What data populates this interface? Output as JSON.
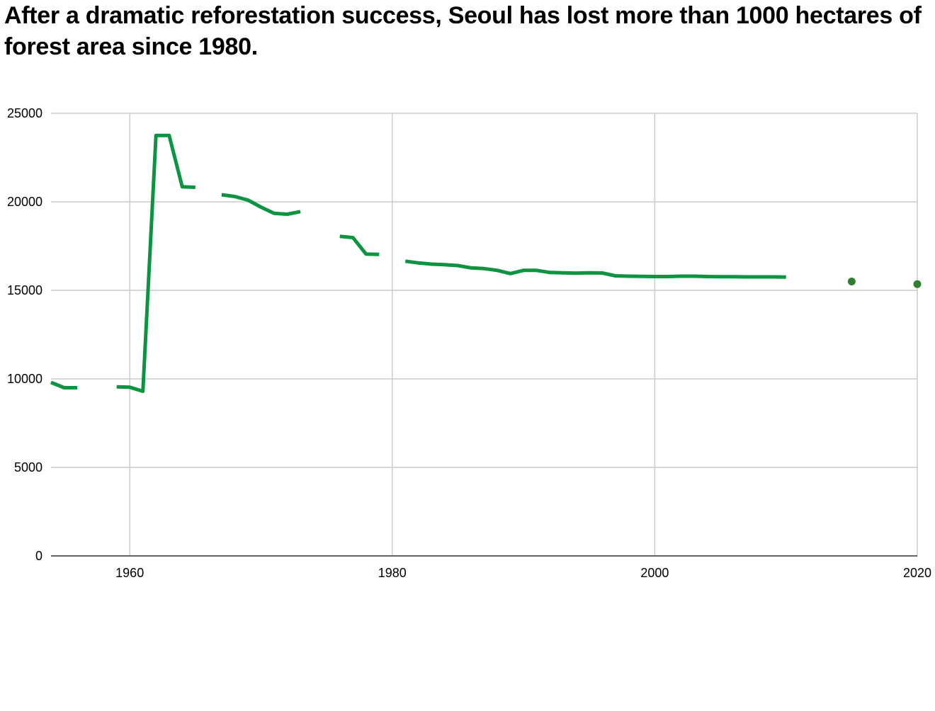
{
  "chart_data": {
    "type": "line",
    "title": "After a dramatic reforestation success, Seoul has lost more than 1000 hectares of forest area since 1980.",
    "xlabel": "",
    "ylabel": "",
    "xlim": [
      1954,
      2020
    ],
    "ylim": [
      0,
      25000
    ],
    "x_ticks": [
      1960,
      1980,
      2000,
      2020
    ],
    "y_ticks": [
      0,
      5000,
      10000,
      15000,
      20000,
      25000
    ],
    "grid": true,
    "legend": "none",
    "colors": {
      "line": "#0c9440",
      "points": "#2e7d32",
      "grid": "#cccccc",
      "axis": "#333333"
    },
    "series": [
      {
        "segments": [
          [
            [
              1954,
              9800
            ],
            [
              1955,
              9500
            ],
            [
              1956,
              9500
            ]
          ],
          [
            [
              1959,
              9550
            ],
            [
              1960,
              9530
            ],
            [
              1961,
              9300
            ],
            [
              1962,
              23750
            ],
            [
              1963,
              23750
            ],
            [
              1964,
              20850
            ],
            [
              1965,
              20820
            ]
          ],
          [
            [
              1967,
              20400
            ],
            [
              1968,
              20300
            ],
            [
              1969,
              20100
            ],
            [
              1970,
              19700
            ],
            [
              1971,
              19350
            ],
            [
              1972,
              19300
            ],
            [
              1973,
              19450
            ]
          ],
          [
            [
              1976,
              18050
            ],
            [
              1977,
              17980
            ],
            [
              1978,
              17050
            ],
            [
              1979,
              17030
            ]
          ],
          [
            [
              1981,
              16650
            ],
            [
              1982,
              16550
            ],
            [
              1983,
              16480
            ],
            [
              1984,
              16450
            ],
            [
              1985,
              16400
            ],
            [
              1986,
              16270
            ],
            [
              1987,
              16230
            ],
            [
              1988,
              16130
            ],
            [
              1989,
              15950
            ],
            [
              1990,
              16130
            ],
            [
              1991,
              16130
            ],
            [
              1992,
              16010
            ],
            [
              1993,
              15990
            ],
            [
              1994,
              15970
            ],
            [
              1995,
              15990
            ],
            [
              1996,
              15980
            ],
            [
              1997,
              15820
            ],
            [
              1998,
              15800
            ],
            [
              1999,
              15790
            ],
            [
              2000,
              15780
            ],
            [
              2001,
              15780
            ],
            [
              2002,
              15800
            ],
            [
              2003,
              15800
            ],
            [
              2004,
              15780
            ],
            [
              2005,
              15770
            ],
            [
              2006,
              15770
            ],
            [
              2007,
              15760
            ],
            [
              2008,
              15760
            ],
            [
              2009,
              15760
            ],
            [
              2010,
              15750
            ]
          ]
        ],
        "points": [
          [
            2015,
            15500
          ],
          [
            2020,
            15350
          ]
        ]
      }
    ]
  }
}
